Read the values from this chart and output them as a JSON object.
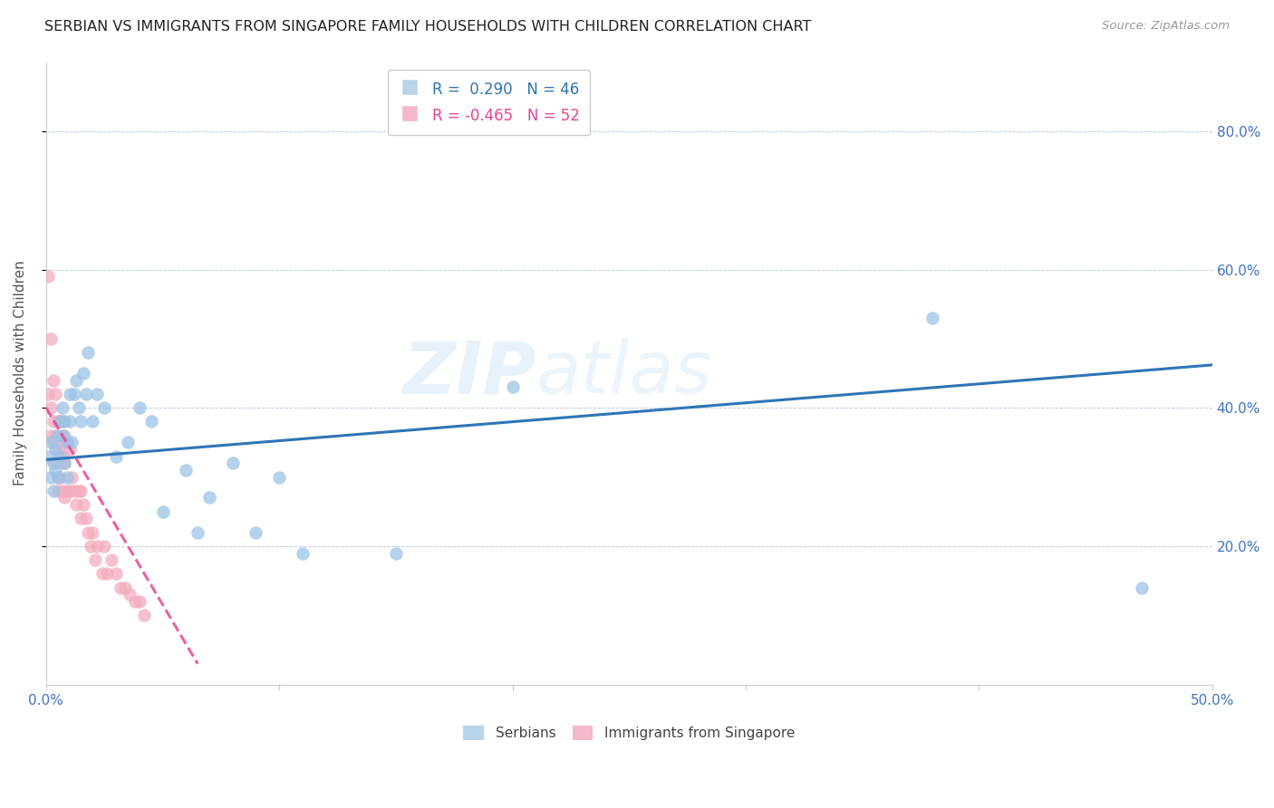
{
  "title": "SERBIAN VS IMMIGRANTS FROM SINGAPORE FAMILY HOUSEHOLDS WITH CHILDREN CORRELATION CHART",
  "source": "Source: ZipAtlas.com",
  "ylabel": "Family Households with Children",
  "xlim": [
    0.0,
    0.5
  ],
  "ylim": [
    0.0,
    0.9
  ],
  "legend_blue_r": " 0.290",
  "legend_blue_n": "46",
  "legend_pink_r": "-0.465",
  "legend_pink_n": "52",
  "blue_color": "#9dc3e6",
  "pink_color": "#f4acbe",
  "line_blue": "#2e75b6",
  "line_pink": "#e84393",
  "axis_color": "#4472c4",
  "watermark_color": "#d6e8f7",
  "serbians_x": [
    0.001,
    0.002,
    0.002,
    0.003,
    0.003,
    0.004,
    0.004,
    0.005,
    0.005,
    0.006,
    0.006,
    0.007,
    0.007,
    0.008,
    0.008,
    0.009,
    0.009,
    0.01,
    0.01,
    0.011,
    0.012,
    0.013,
    0.014,
    0.015,
    0.016,
    0.017,
    0.018,
    0.02,
    0.022,
    0.025,
    0.03,
    0.035,
    0.04,
    0.045,
    0.05,
    0.06,
    0.065,
    0.07,
    0.08,
    0.09,
    0.1,
    0.11,
    0.15,
    0.2,
    0.38,
    0.47
  ],
  "serbians_y": [
    0.33,
    0.3,
    0.35,
    0.32,
    0.28,
    0.34,
    0.31,
    0.36,
    0.3,
    0.38,
    0.33,
    0.4,
    0.36,
    0.38,
    0.32,
    0.35,
    0.3,
    0.42,
    0.38,
    0.35,
    0.42,
    0.44,
    0.4,
    0.38,
    0.45,
    0.42,
    0.48,
    0.38,
    0.42,
    0.4,
    0.33,
    0.35,
    0.4,
    0.38,
    0.25,
    0.31,
    0.22,
    0.27,
    0.32,
    0.22,
    0.3,
    0.19,
    0.19,
    0.43,
    0.53,
    0.14
  ],
  "singapore_x": [
    0.001,
    0.001,
    0.002,
    0.002,
    0.002,
    0.003,
    0.003,
    0.003,
    0.004,
    0.004,
    0.004,
    0.005,
    0.005,
    0.005,
    0.005,
    0.006,
    0.006,
    0.006,
    0.007,
    0.007,
    0.007,
    0.008,
    0.008,
    0.008,
    0.009,
    0.009,
    0.01,
    0.01,
    0.011,
    0.012,
    0.013,
    0.014,
    0.015,
    0.015,
    0.016,
    0.017,
    0.018,
    0.019,
    0.02,
    0.021,
    0.022,
    0.024,
    0.025,
    0.026,
    0.028,
    0.03,
    0.032,
    0.034,
    0.036,
    0.038,
    0.04,
    0.042
  ],
  "singapore_y": [
    0.59,
    0.42,
    0.5,
    0.4,
    0.36,
    0.44,
    0.38,
    0.35,
    0.42,
    0.36,
    0.32,
    0.38,
    0.34,
    0.3,
    0.28,
    0.38,
    0.35,
    0.3,
    0.38,
    0.33,
    0.28,
    0.36,
    0.32,
    0.27,
    0.35,
    0.28,
    0.34,
    0.28,
    0.3,
    0.28,
    0.26,
    0.28,
    0.28,
    0.24,
    0.26,
    0.24,
    0.22,
    0.2,
    0.22,
    0.18,
    0.2,
    0.16,
    0.2,
    0.16,
    0.18,
    0.16,
    0.14,
    0.14,
    0.13,
    0.12,
    0.12,
    0.1
  ],
  "blue_trend_x": [
    0.0,
    0.5
  ],
  "blue_trend_y": [
    0.325,
    0.462
  ],
  "pink_trend_x": [
    0.0,
    0.065
  ],
  "pink_trend_y": [
    0.4,
    0.03
  ]
}
